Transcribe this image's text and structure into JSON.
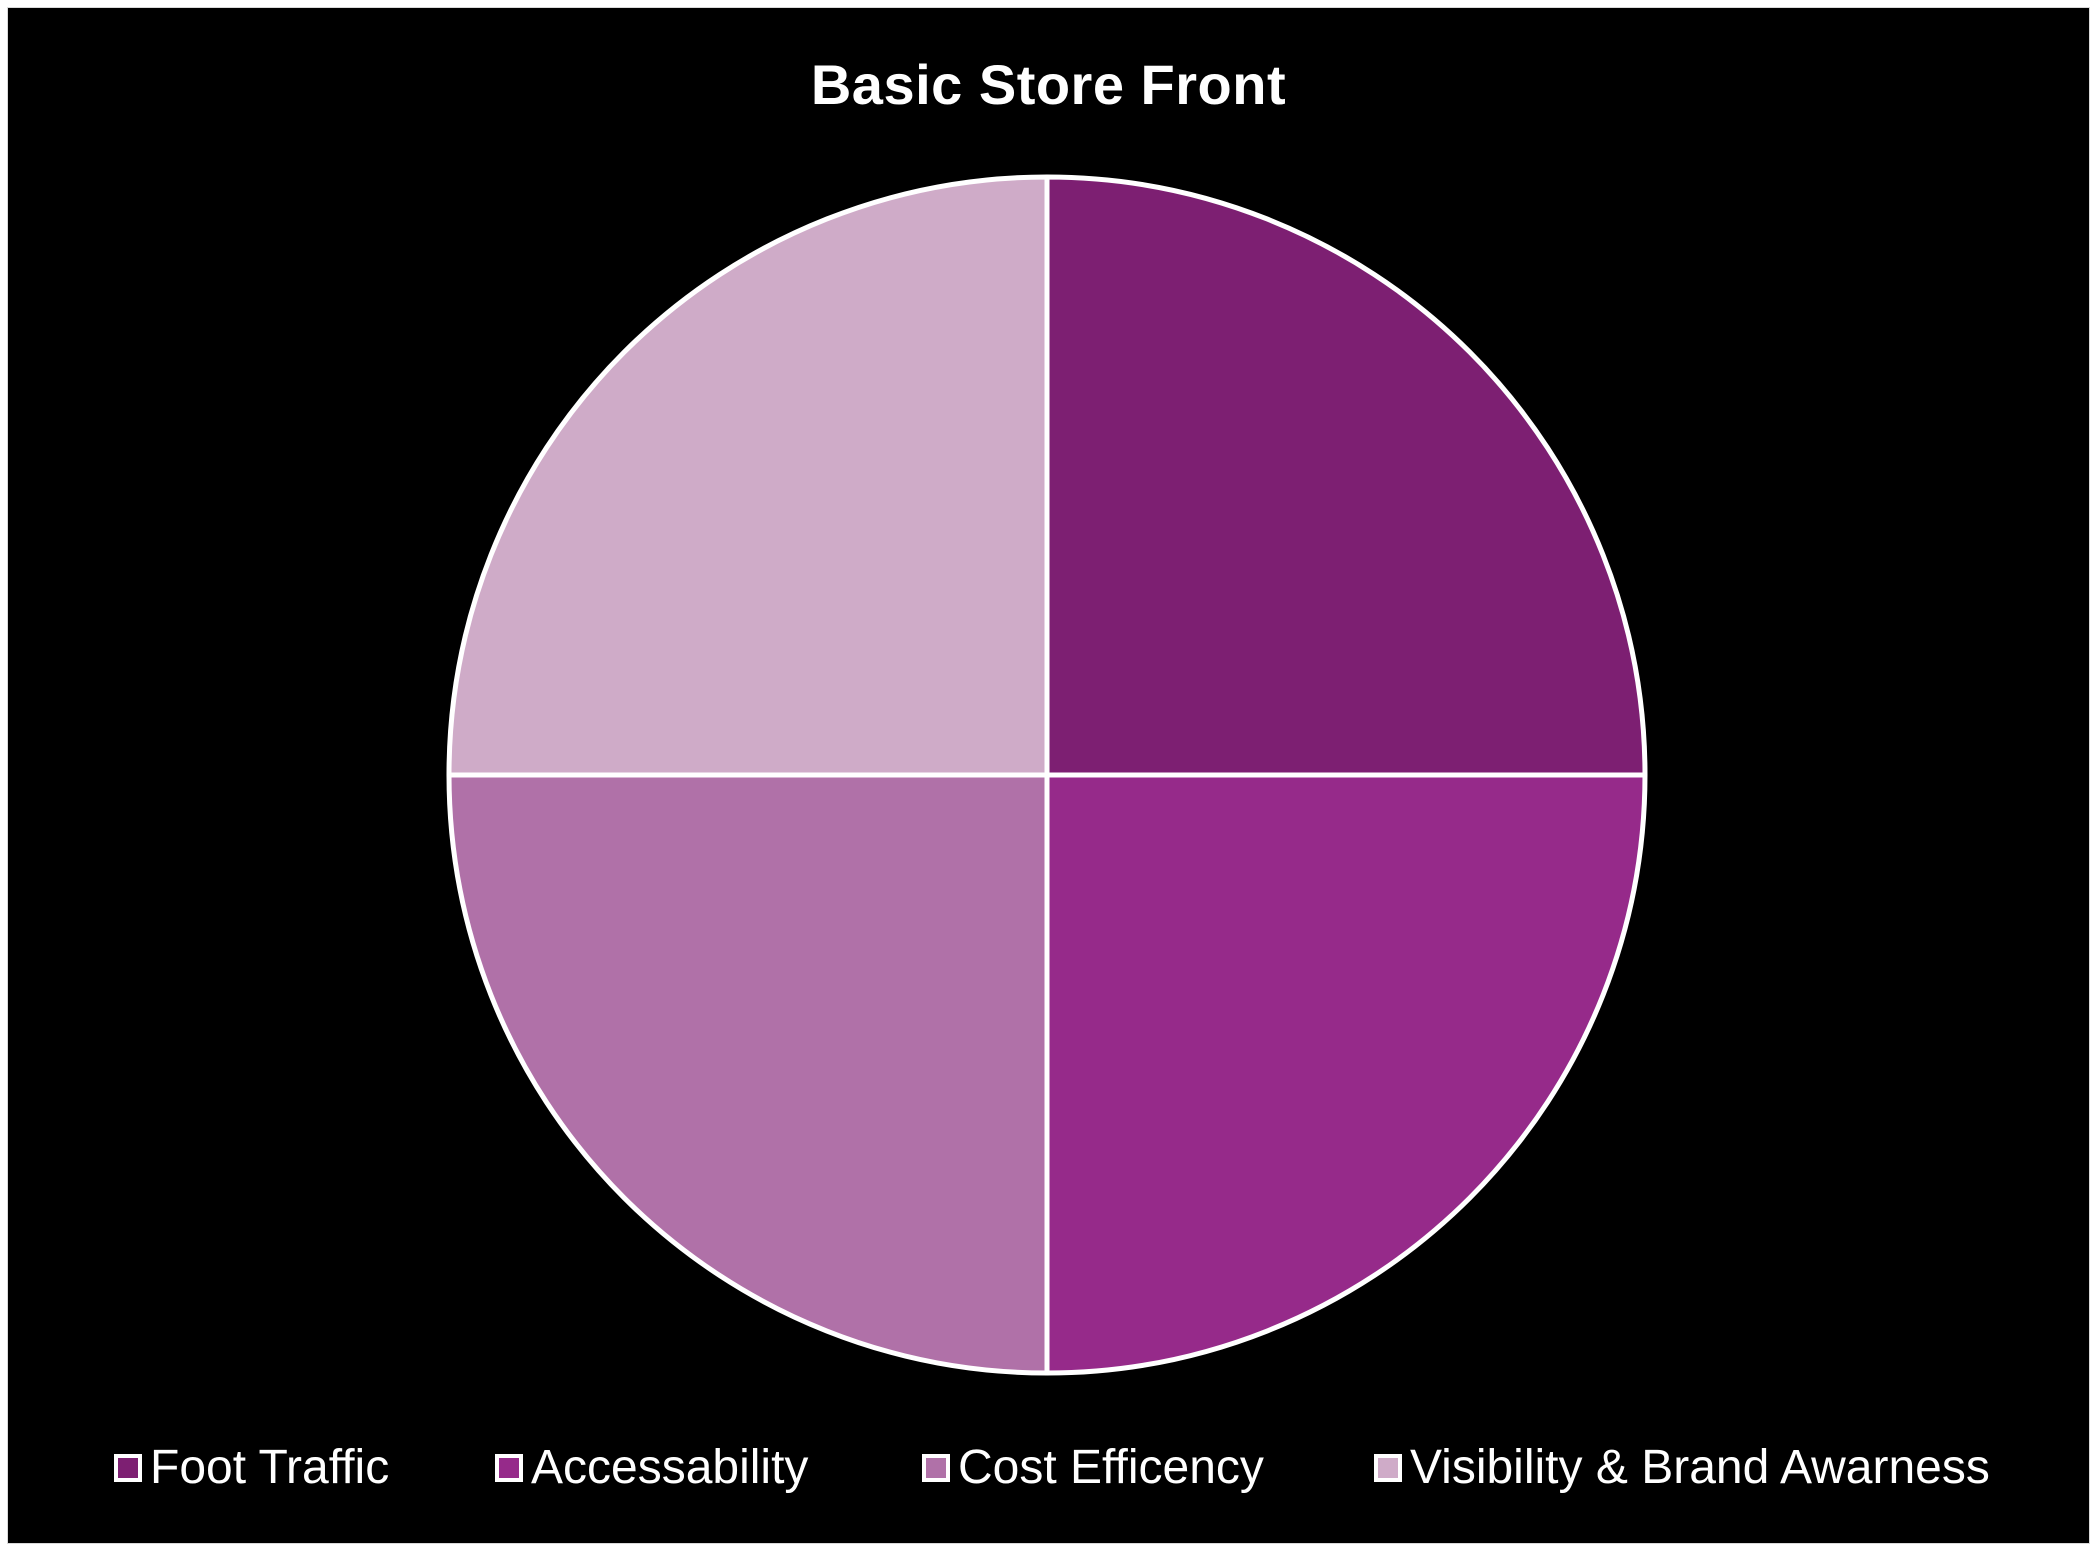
{
  "chart_data": {
    "type": "pie",
    "title": "Basic Store Front",
    "categories": [
      "Foot Traffic",
      "Accessability",
      "Cost Efficency",
      "Visibility & Brand Awarness"
    ],
    "values": [
      25,
      25,
      25,
      25
    ],
    "colors": [
      "#7d1f72",
      "#962a8a",
      "#b071a8",
      "#cfabc8"
    ],
    "start_angle": "12 o'clock",
    "direction": "clockwise",
    "slice_border_color": "#ffffff",
    "background": "#000000",
    "legend_position": "bottom"
  }
}
